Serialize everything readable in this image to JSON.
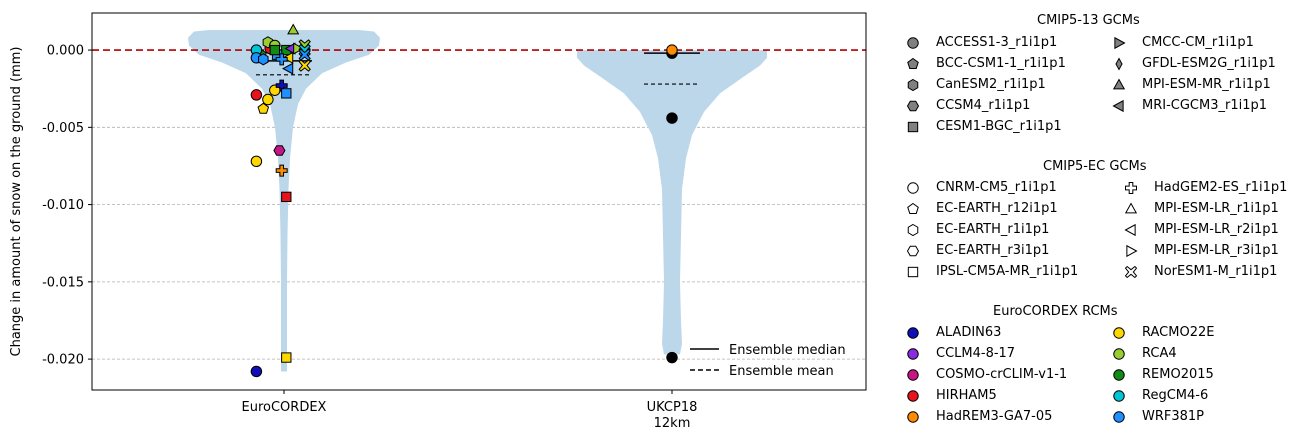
{
  "chart_data": {
    "type": "violin",
    "ylabel": "Change in amount of snow on the ground (mm)",
    "xlabel": "",
    "ylim": [
      -0.022,
      0.0024
    ],
    "yticks": [
      0.0,
      -0.005,
      -0.01,
      -0.015,
      -0.02
    ],
    "ytick_labels": [
      "0.000",
      "-0.005",
      "-0.010",
      "-0.015",
      "-0.020"
    ],
    "grid": "y-dashed",
    "zero_line_color": "#b00000",
    "violin_color": "#bcd7ea",
    "categories": [
      {
        "label": "EuroCORDEX",
        "sublabel": ""
      },
      {
        "label": "UKCP18",
        "sublabel": "12km"
      }
    ],
    "ensemble_median": [
      -0.0007,
      -0.0002
    ],
    "ensemble_mean": [
      -0.0016,
      -0.0022
    ],
    "violin_range": [
      [
        -0.0208,
        0.0013
      ],
      [
        -0.0197,
        0.0
      ]
    ],
    "points": [
      {
        "group": 0,
        "x_offset": -0.6,
        "y": -0.0208,
        "gcm": "ACCESS1-3_r1i1p1",
        "rcm": "ALADIN63",
        "fill": true
      },
      {
        "group": 0,
        "x_offset": -0.6,
        "y": -0.0072,
        "gcm": "ACCESS1-3_r1i1p1",
        "rcm": "RACMO22E",
        "fill": true
      },
      {
        "group": 0,
        "x_offset": -0.6,
        "y": -0.0029,
        "gcm": "ACCESS1-3_r1i1p1",
        "rcm": "HIRHAM5",
        "fill": true
      },
      {
        "group": 0,
        "x_offset": -0.5,
        "y": -0.0003,
        "gcm": "BCC-CSM1-1_r1i1p1",
        "rcm": "REMO2015",
        "fill": true
      },
      {
        "group": 0,
        "x_offset": -0.45,
        "y": -0.0038,
        "gcm": "EC-EARTH_r12i1p1",
        "rcm": "RACMO22E",
        "fill": true
      },
      {
        "group": 0,
        "x_offset": -0.35,
        "y": -0.0032,
        "gcm": "ACCESS1-3_r1i1p1",
        "rcm": "RACMO22E",
        "fill": true
      },
      {
        "group": 0,
        "x_offset": -0.3,
        "y": 0.0001,
        "gcm": "ACCESS1-3_r1i1p1",
        "rcm": "HIRHAM5",
        "fill": true
      },
      {
        "group": 0,
        "x_offset": -0.35,
        "y": 0.0005,
        "gcm": "CanESM2_r1i1p1",
        "rcm": "RCA4",
        "fill": true
      },
      {
        "group": 0,
        "x_offset": -0.2,
        "y": -0.0026,
        "gcm": "ACCESS1-3_r1i1p1",
        "rcm": "RACMO22E",
        "fill": true
      },
      {
        "group": 0,
        "x_offset": -0.2,
        "y": 0.0003,
        "gcm": "ACCESS1-3_r1i1p1",
        "rcm": "RCA4",
        "fill": true
      },
      {
        "group": 0,
        "x_offset": -0.1,
        "y": -0.0065,
        "gcm": "CCSM4_r1i1p1",
        "rcm": "COSMO-crCLIM-v1-1",
        "fill": true
      },
      {
        "group": 0,
        "x_offset": -0.05,
        "y": -0.0078,
        "gcm": "HadGEM2-ES_r1i1p1",
        "rcm": "HadREM3-GA7-05",
        "fill": true
      },
      {
        "group": 0,
        "x_offset": -0.05,
        "y": -0.0023,
        "gcm": "HadGEM2-ES_r1i1p1",
        "rcm": "ALADIN63",
        "fill": true
      },
      {
        "group": 0,
        "x_offset": 0.05,
        "y": -0.0095,
        "gcm": "CESM1-BGC_r1i1p1",
        "rcm": "HIRHAM5",
        "fill": true
      },
      {
        "group": 0,
        "x_offset": 0.05,
        "y": -0.0199,
        "gcm": "CESM1-BGC_r1i1p1",
        "rcm": "RACMO22E",
        "fill": true
      },
      {
        "group": 0,
        "x_offset": 0.05,
        "y": -0.0028,
        "gcm": "CESM1-BGC_r1i1p1",
        "rcm": "WRF381P",
        "fill": true
      },
      {
        "group": 0,
        "x_offset": 0.05,
        "y": 0.0,
        "gcm": "CESM1-BGC_r1i1p1",
        "rcm": "REMO2015",
        "fill": true
      },
      {
        "group": 0,
        "x_offset": 0.2,
        "y": 0.0013,
        "gcm": "MPI-ESM-MR_r1i1p1",
        "rcm": "RCA4",
        "fill": true
      },
      {
        "group": 0,
        "x_offset": 0.15,
        "y": 0.0001,
        "gcm": "MRI-CGCM3_r1i1p1",
        "rcm": "CCLM4-8-17",
        "fill": true
      },
      {
        "group": 0,
        "x_offset": 0.1,
        "y": -0.0005,
        "gcm": "MRI-CGCM3_r1i1p1",
        "rcm": "RACMO22E",
        "fill": true
      },
      {
        "group": 0,
        "x_offset": 0.1,
        "y": -0.0012,
        "gcm": "MRI-CGCM3_r1i1p1",
        "rcm": "WRF381P",
        "fill": true
      },
      {
        "group": 0,
        "x_offset": 0.3,
        "y": 0.0001,
        "gcm": "CMCC-CM_r1i1p1",
        "rcm": "RCA4",
        "fill": true
      },
      {
        "group": 0,
        "x_offset": 0.45,
        "y": 0.0003,
        "gcm": "NorESM1-M_r1i1p1",
        "rcm": "RCA4",
        "fill": true
      },
      {
        "group": 0,
        "x_offset": 0.45,
        "y": 0.0,
        "gcm": "NorESM1-M_r1i1p1",
        "rcm": "RegCM4-6",
        "fill": true
      },
      {
        "group": 0,
        "x_offset": 0.45,
        "y": -0.0003,
        "gcm": "NorESM1-M_r1i1p1",
        "rcm": "WRF381P",
        "fill": true
      },
      {
        "group": 0,
        "x_offset": 0.45,
        "y": -0.001,
        "gcm": "NorESM1-M_r1i1p1",
        "rcm": "RACMO22E",
        "fill": true
      },
      {
        "group": 0,
        "x_offset": -0.6,
        "y": 0.0,
        "gcm": "CNRM-CM5_r1i1p1",
        "rcm": "RegCM4-6",
        "fill": true
      },
      {
        "group": 0,
        "x_offset": -0.6,
        "y": -0.0005,
        "gcm": "ACCESS1-3_r1i1p1",
        "rcm": "WRF381P",
        "fill": true
      },
      {
        "group": 0,
        "x_offset": -0.45,
        "y": -0.0006,
        "gcm": "EC-EARTH_r1i1p1",
        "rcm": "WRF381P",
        "fill": true
      },
      {
        "group": 0,
        "x_offset": -0.15,
        "y": -0.0003,
        "gcm": "IPSL-CM5A-MR_r1i1p1",
        "rcm": "WRF381P",
        "fill": true
      },
      {
        "group": 0,
        "x_offset": -0.2,
        "y": 0.0,
        "gcm": "IPSL-CM5A-MR_r1i1p1",
        "rcm": "REMO2015",
        "fill": true
      },
      {
        "group": 0,
        "x_offset": -0.05,
        "y": -0.0006,
        "gcm": "HadGEM2-ES_r1i1p1",
        "rcm": "WRF381P",
        "fill": true
      },
      {
        "group": 1,
        "x_offset": 0.0,
        "y": -0.0199,
        "gcm": "",
        "rcm": "",
        "fill": "black"
      },
      {
        "group": 1,
        "x_offset": 0.0,
        "y": -0.0044,
        "gcm": "",
        "rcm": "",
        "fill": "black"
      },
      {
        "group": 1,
        "x_offset": 0.0,
        "y": -0.0002,
        "gcm": "",
        "rcm": "",
        "fill": "black"
      },
      {
        "group": 1,
        "x_offset": 0.0,
        "y": 0.0,
        "gcm": "",
        "rcm": "HadREM3-GA7-05",
        "fill": true
      }
    ]
  },
  "line_legend": {
    "median_label": "Ensemble median",
    "mean_label": "Ensemble mean"
  },
  "legend_cmip513": {
    "title": "CMIP5-13 GCMs",
    "col1": [
      {
        "label": "ACCESS1-3_r1i1p1",
        "marker": "circle"
      },
      {
        "label": "BCC-CSM1-1_r1i1p1",
        "marker": "pentagon"
      },
      {
        "label": "CanESM2_r1i1p1",
        "marker": "hexagon"
      },
      {
        "label": "CCSM4_r1i1p1",
        "marker": "hexagon2"
      },
      {
        "label": "CESM1-BGC_r1i1p1",
        "marker": "square"
      }
    ],
    "col2": [
      {
        "label": "CMCC-CM_r1i1p1",
        "marker": "tri-right"
      },
      {
        "label": "GFDL-ESM2G_r1i1p1",
        "marker": "thin-diamond"
      },
      {
        "label": "MPI-ESM-MR_r1i1p1",
        "marker": "tri-up"
      },
      {
        "label": "MRI-CGCM3_r1i1p1",
        "marker": "tri-left"
      }
    ]
  },
  "legend_cmip5ec": {
    "title": "CMIP5-EC GCMs",
    "col1": [
      {
        "label": "CNRM-CM5_r1i1p1",
        "marker": "circle"
      },
      {
        "label": "EC-EARTH_r12i1p1",
        "marker": "pentagon"
      },
      {
        "label": "EC-EARTH_r1i1p1",
        "marker": "hexagon"
      },
      {
        "label": "EC-EARTH_r3i1p1",
        "marker": "hexagon2"
      },
      {
        "label": "IPSL-CM5A-MR_r1i1p1",
        "marker": "square"
      }
    ],
    "col2": [
      {
        "label": "HadGEM2-ES_r1i1p1",
        "marker": "plus"
      },
      {
        "label": "MPI-ESM-LR_r1i1p1",
        "marker": "tri-up"
      },
      {
        "label": "MPI-ESM-LR_r2i1p1",
        "marker": "tri-left"
      },
      {
        "label": "MPI-ESM-LR_r3i1p1",
        "marker": "tri-right"
      },
      {
        "label": "NorESM1-M_r1i1p1",
        "marker": "x"
      }
    ]
  },
  "legend_rcms": {
    "title": "EuroCORDEX RCMs",
    "col1": [
      {
        "label": "ALADIN63",
        "color": "#1010b8"
      },
      {
        "label": "CCLM4-8-17",
        "color": "#8a2be2"
      },
      {
        "label": "COSMO-crCLIM-v1-1",
        "color": "#c71585"
      },
      {
        "label": "HIRHAM5",
        "color": "#e8141c"
      },
      {
        "label": "HadREM3-GA7-05",
        "color": "#ff8c00"
      }
    ],
    "col2": [
      {
        "label": "RACMO22E",
        "color": "#ffd700"
      },
      {
        "label": "RCA4",
        "color": "#9acd32"
      },
      {
        "label": "REMO2015",
        "color": "#138a13"
      },
      {
        "label": "RegCM4-6",
        "color": "#00c5d5"
      },
      {
        "label": "WRF381P",
        "color": "#1e90ff"
      }
    ]
  }
}
